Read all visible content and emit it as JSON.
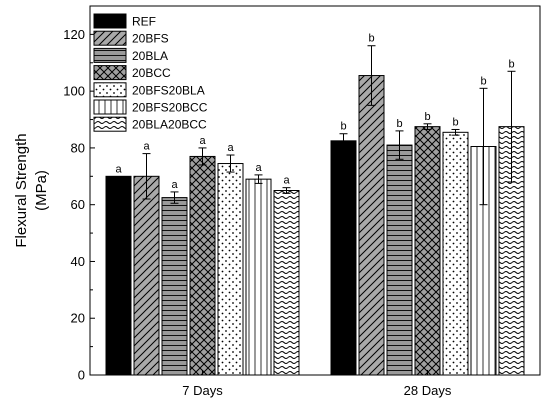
{
  "chart_data": {
    "type": "bar",
    "xlabel": "",
    "ylabel": "Flexural Strength\n(MPa)",
    "ylim": [
      0,
      130
    ],
    "yticks": [
      0,
      20,
      40,
      60,
      80,
      100,
      120
    ],
    "grid": false,
    "legend_position": "top-left",
    "categories": [
      "7 Days",
      "28 Days"
    ],
    "series": [
      {
        "name": "REF",
        "pattern": "solid-black",
        "values": [
          70,
          82.5
        ],
        "errors": [
          0,
          2.5
        ],
        "labels": [
          "a",
          "b"
        ]
      },
      {
        "name": "20BFS",
        "pattern": "diagonal-gray",
        "values": [
          70,
          105.5
        ],
        "errors": [
          8,
          10.5
        ],
        "labels": [
          "a",
          "b"
        ]
      },
      {
        "name": "20BLA",
        "pattern": "horizontal-gray",
        "values": [
          62.5,
          81
        ],
        "errors": [
          2,
          5
        ],
        "labels": [
          "a",
          "b"
        ]
      },
      {
        "name": "20BCC",
        "pattern": "crosshatch-gray",
        "values": [
          77,
          87.5
        ],
        "errors": [
          3,
          1
        ],
        "labels": [
          "a",
          "b"
        ]
      },
      {
        "name": "20BFS20BLA",
        "pattern": "dots",
        "values": [
          74.5,
          85.5
        ],
        "errors": [
          3,
          1
        ],
        "labels": [
          "a",
          "b"
        ]
      },
      {
        "name": "20BFS20BCC",
        "pattern": "vertical-lines",
        "values": [
          69,
          80.5
        ],
        "errors": [
          1.5,
          20.5
        ],
        "labels": [
          "a",
          "b"
        ]
      },
      {
        "name": "20BLA20BCC",
        "pattern": "waves",
        "values": [
          65,
          87.5
        ],
        "errors": [
          1,
          19.5
        ],
        "labels": [
          "a",
          "b"
        ]
      }
    ]
  }
}
